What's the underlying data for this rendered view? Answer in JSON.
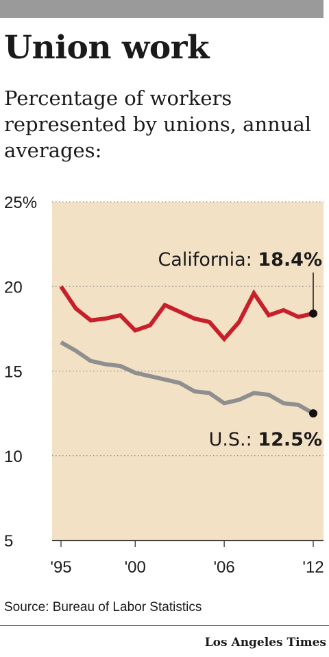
{
  "header": {
    "title": "Union work",
    "subtitle": "Percentage of workers represented by unions, annual averages:"
  },
  "footer": {
    "source": "Source: Bureau of Labor Statistics",
    "credit": "Los Angeles Times"
  },
  "colors": {
    "plot_background": "#f3e1c5",
    "california": "#c8202a",
    "us": "#8f8f8f",
    "grid": "#8c8c8c"
  },
  "chart_data": {
    "type": "line",
    "title": "Union work",
    "subtitle": "Percentage of workers represented by unions, annual averages:",
    "x": [
      1995,
      1996,
      1997,
      1998,
      1999,
      2000,
      2001,
      2002,
      2003,
      2004,
      2005,
      2006,
      2007,
      2008,
      2009,
      2010,
      2011,
      2012
    ],
    "x_tick_values": [
      1995,
      2000,
      2006,
      2012
    ],
    "x_tick_labels": [
      "'95",
      "'00",
      "'06",
      "'12"
    ],
    "y_tick_values": [
      25,
      20,
      15,
      10,
      5
    ],
    "y_tick_labels": [
      "25%",
      "20",
      "15",
      "10",
      "5"
    ],
    "ylim": [
      5,
      25
    ],
    "xlim": [
      1995,
      2012
    ],
    "grid": true,
    "series": [
      {
        "name": "California",
        "color": "#c8202a",
        "values": [
          20.0,
          18.7,
          18.0,
          18.1,
          18.3,
          17.4,
          17.7,
          18.9,
          18.5,
          18.1,
          17.9,
          16.9,
          17.9,
          19.6,
          18.3,
          18.6,
          18.2,
          18.4
        ],
        "label_name": "California:",
        "label_value": "18.4%"
      },
      {
        "name": "U.S.",
        "color": "#8f8f8f",
        "values": [
          16.7,
          16.2,
          15.6,
          15.4,
          15.3,
          14.9,
          14.7,
          14.5,
          14.3,
          13.8,
          13.7,
          13.1,
          13.3,
          13.7,
          13.6,
          13.1,
          13.0,
          12.5
        ],
        "label_name": "U.S.:",
        "label_value": "12.5%"
      }
    ]
  }
}
